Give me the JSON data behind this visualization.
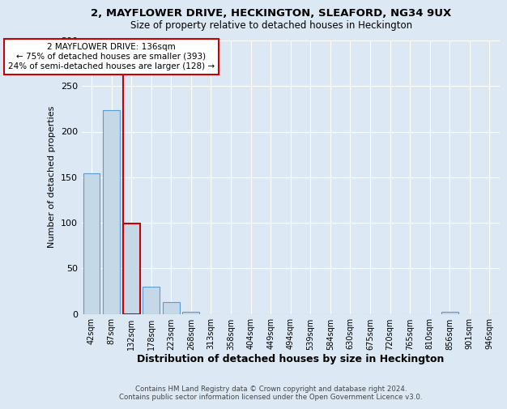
{
  "title": "2, MAYFLOWER DRIVE, HECKINGTON, SLEAFORD, NG34 9UX",
  "subtitle": "Size of property relative to detached houses in Heckington",
  "xlabel": "Distribution of detached houses by size in Heckington",
  "ylabel": "Number of detached properties",
  "bin_labels": [
    "42sqm",
    "87sqm",
    "132sqm",
    "178sqm",
    "223sqm",
    "268sqm",
    "313sqm",
    "358sqm",
    "404sqm",
    "449sqm",
    "494sqm",
    "539sqm",
    "584sqm",
    "630sqm",
    "675sqm",
    "720sqm",
    "765sqm",
    "810sqm",
    "856sqm",
    "901sqm",
    "946sqm"
  ],
  "bar_values": [
    154,
    224,
    99,
    30,
    13,
    2,
    0,
    0,
    0,
    0,
    0,
    0,
    0,
    0,
    0,
    0,
    0,
    0,
    2,
    0,
    0
  ],
  "bar_color": "#c5d8e8",
  "bar_edge_color": "#5b9bd5",
  "highlight_index": 2,
  "highlight_line_color": "#cc0000",
  "annotation_text": "2 MAYFLOWER DRIVE: 136sqm\n← 75% of detached houses are smaller (393)\n24% of semi-detached houses are larger (128) →",
  "annotation_box_color": "#ffffff",
  "annotation_box_edge_color": "#cc0000",
  "ylim": [
    0,
    300
  ],
  "yticks": [
    0,
    50,
    100,
    150,
    200,
    250,
    300
  ],
  "footnote": "Contains HM Land Registry data © Crown copyright and database right 2024.\nContains public sector information licensed under the Open Government Licence v3.0.",
  "bg_color": "#dce9f5",
  "plot_bg_color": "#dce9f5"
}
